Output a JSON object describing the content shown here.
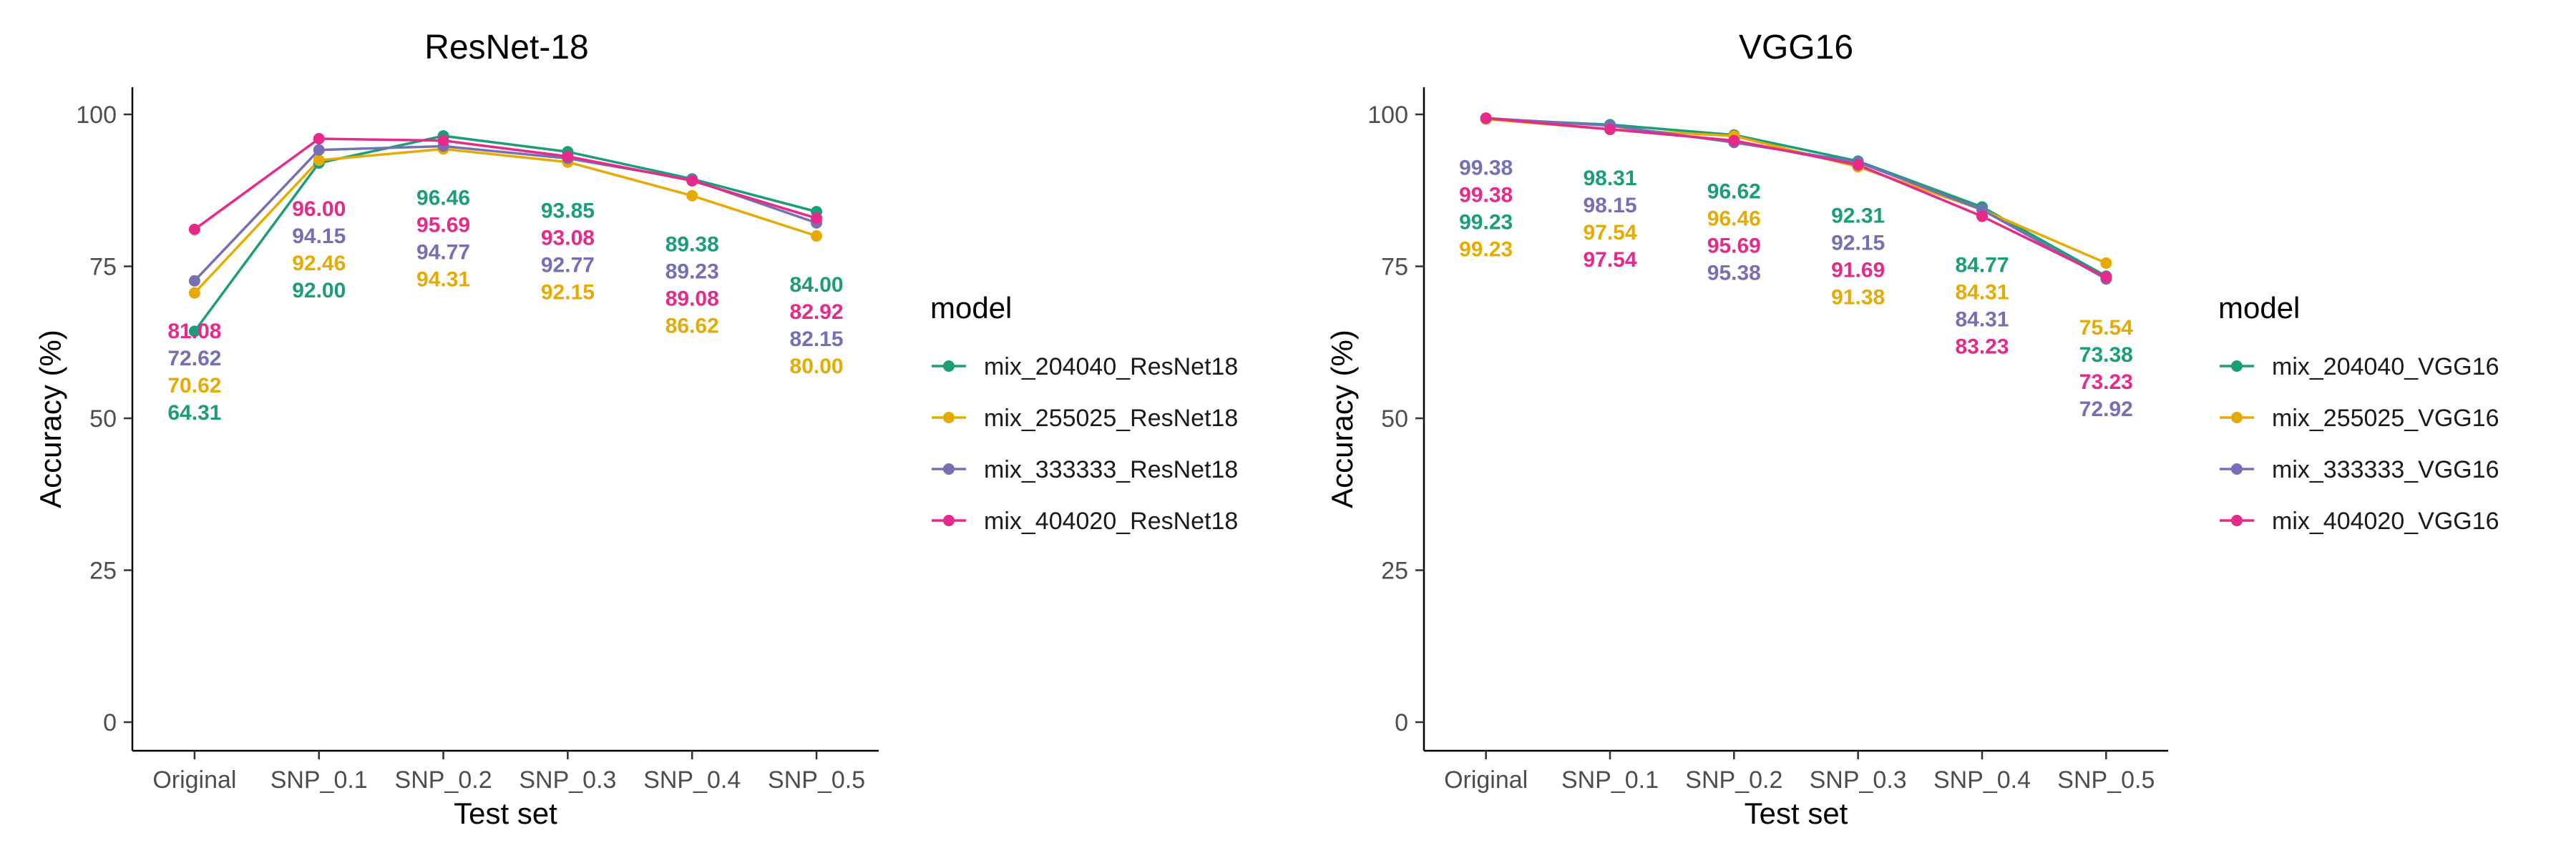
{
  "chart_data": [
    {
      "type": "line",
      "title": "ResNet-18",
      "xlabel": "Test set",
      "ylabel": "Accuracy (%)",
      "ylim": [
        0,
        100
      ],
      "yticks": [
        "0",
        "25",
        "50",
        "75",
        "100"
      ],
      "categories": [
        "Original",
        "SNP_0.1",
        "SNP_0.2",
        "SNP_0.3",
        "SNP_0.4",
        "SNP_0.5"
      ],
      "grid": false,
      "legend": {
        "title": "model",
        "position": "right"
      },
      "series": [
        {
          "name": "mix_204040_ResNet18",
          "color": "#1b9e77",
          "values": [
            64.31,
            92.0,
            96.46,
            93.85,
            89.38,
            84.0
          ],
          "labels": [
            "64.31",
            "92.00",
            "96.46",
            "93.85",
            "89.38",
            "84.00"
          ]
        },
        {
          "name": "mix_255025_ResNet18",
          "color": "#e6ab02",
          "values": [
            70.62,
            92.46,
            94.31,
            92.15,
            86.62,
            80.0
          ],
          "labels": [
            "70.62",
            "92.46",
            "94.31",
            "92.15",
            "86.62",
            "80.00"
          ]
        },
        {
          "name": "mix_333333_ResNet18",
          "color": "#7570b3",
          "values": [
            72.62,
            94.15,
            94.77,
            92.77,
            89.23,
            82.15
          ],
          "labels": [
            "72.62",
            "94.15",
            "94.77",
            "92.77",
            "89.23",
            "82.15"
          ]
        },
        {
          "name": "mix_404020_ResNet18",
          "color": "#e7298a",
          "values": [
            81.08,
            96.0,
            95.69,
            93.08,
            89.08,
            82.92
          ],
          "labels": [
            "81.08",
            "96.00",
            "95.69",
            "93.08",
            "89.08",
            "82.92"
          ]
        }
      ]
    },
    {
      "type": "line",
      "title": "VGG16",
      "xlabel": "Test set",
      "ylabel": "Accuracy (%)",
      "ylim": [
        0,
        100
      ],
      "yticks": [
        "0",
        "25",
        "50",
        "75",
        "100"
      ],
      "categories": [
        "Original",
        "SNP_0.1",
        "SNP_0.2",
        "SNP_0.3",
        "SNP_0.4",
        "SNP_0.5"
      ],
      "grid": false,
      "legend": {
        "title": "model",
        "position": "right"
      },
      "series": [
        {
          "name": "mix_204040_VGG16",
          "color": "#1b9e77",
          "values": [
            99.23,
            98.31,
            96.62,
            92.31,
            84.77,
            73.38
          ],
          "labels": [
            "99.23",
            "98.31",
            "96.62",
            "92.31",
            "84.77",
            "73.38"
          ]
        },
        {
          "name": "mix_255025_VGG16",
          "color": "#e6ab02",
          "values": [
            99.23,
            97.54,
            96.46,
            91.38,
            84.31,
            75.54
          ],
          "labels": [
            "99.23",
            "97.54",
            "96.46",
            "91.38",
            "84.31",
            "75.54"
          ]
        },
        {
          "name": "mix_333333_VGG16",
          "color": "#7570b3",
          "values": [
            99.38,
            98.15,
            95.38,
            92.15,
            84.31,
            72.92
          ],
          "labels": [
            "99.38",
            "98.15",
            "95.38",
            "92.15",
            "84.31",
            "72.92"
          ]
        },
        {
          "name": "mix_404020_VGG16",
          "color": "#e7298a",
          "values": [
            99.38,
            97.54,
            95.69,
            91.69,
            83.23,
            73.23
          ],
          "labels": [
            "99.38",
            "97.54",
            "95.69",
            "91.69",
            "83.23",
            "73.23"
          ]
        }
      ]
    }
  ]
}
